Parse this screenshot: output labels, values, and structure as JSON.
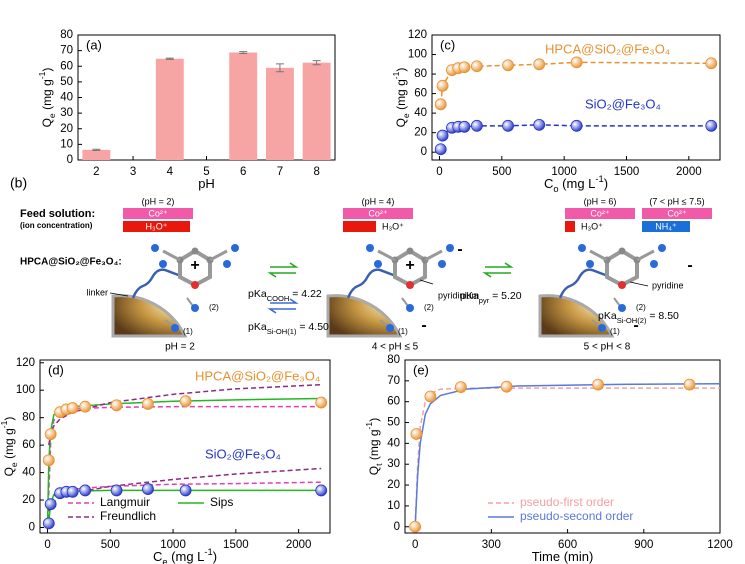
{
  "chart_data": [
    {
      "type": "bar",
      "panel_label": "(a)",
      "x_label": [
        {
          "text": "pH"
        }
      ],
      "y_label": [
        {
          "text": "Q"
        },
        {
          "text": "e",
          "shift": "sub"
        },
        {
          "text": " (mg g"
        },
        {
          "text": "-1",
          "shift": "super"
        },
        {
          "text": ")"
        }
      ],
      "categories": [
        "2",
        "3",
        "4",
        "5",
        "6",
        "7",
        "8"
      ],
      "values": [
        6.5,
        null,
        64.8,
        null,
        68.8,
        59,
        62.3
      ],
      "errors": [
        0.4,
        null,
        0.4,
        null,
        0.6,
        2.5,
        1.3
      ],
      "color": "#f7a4a4",
      "ylim": [
        0,
        80
      ],
      "yticks": [
        0,
        10,
        20,
        30,
        40,
        50,
        60,
        70,
        80
      ]
    },
    {
      "type": "scatter",
      "panel_label": "(c)",
      "x_label": [
        {
          "text": "C"
        },
        {
          "text": "o",
          "shift": "sub"
        },
        {
          "text": " (mg L"
        },
        {
          "text": "-1",
          "shift": "super"
        },
        {
          "text": ")"
        }
      ],
      "y_label": [
        {
          "text": "Q"
        },
        {
          "text": "e",
          "shift": "sub"
        },
        {
          "text": " (mg g"
        },
        {
          "text": "-1",
          "shift": "super"
        },
        {
          "text": ")"
        }
      ],
      "xlim": [
        -60,
        2250
      ],
      "xticks": [
        0,
        500,
        1000,
        1500,
        2000
      ],
      "ylim": [
        -8,
        120
      ],
      "yticks": [
        0,
        20,
        40,
        60,
        80,
        100,
        120
      ],
      "series": [
        {
          "name": "HPCA@SiO₂@Fe₃O₄",
          "color": "#e8912f",
          "marker": true,
          "line": "dashed",
          "x": [
            10,
            25,
            100,
            150,
            200,
            300,
            550,
            800,
            1100,
            2180
          ],
          "values": [
            49,
            68,
            84,
            86,
            87,
            88,
            89,
            90,
            92,
            91
          ]
        },
        {
          "name": "SiO₂@Fe₃O₄",
          "color": "#2235c8",
          "marker": true,
          "line": "dashed",
          "x": [
            10,
            25,
            100,
            150,
            200,
            300,
            550,
            800,
            1100,
            2180
          ],
          "values": [
            3,
            17,
            25,
            26,
            26,
            27,
            27,
            28,
            27,
            27
          ]
        }
      ]
    },
    {
      "type": "scatter",
      "panel_label": "(d)",
      "legend": "lower center",
      "legend_text": "black",
      "x_label": [
        {
          "text": "C"
        },
        {
          "text": "e",
          "shift": "sub"
        },
        {
          "text": " (mg L"
        },
        {
          "text": "-1",
          "shift": "super"
        },
        {
          "text": ")"
        }
      ],
      "y_label": [
        {
          "text": "Q"
        },
        {
          "text": "e",
          "shift": "sub"
        },
        {
          "text": " (mg g"
        },
        {
          "text": "-1",
          "shift": "super"
        },
        {
          "text": ")"
        }
      ],
      "xlim": [
        -60,
        2250
      ],
      "xticks": [
        0,
        500,
        1000,
        1500,
        2000
      ],
      "ylim": [
        -4,
        122
      ],
      "yticks": [
        0,
        20,
        40,
        60,
        80,
        100,
        120
      ],
      "series": [
        {
          "name": "Langmuir",
          "color": "#e040b8",
          "line": "dashed",
          "pieces": [
            {
              "x": [
                0,
                25,
                50,
                100,
                200,
                500,
                1000,
                1500,
                2180
              ],
              "values": [
                0,
                62,
                78,
                84,
                86.5,
                87.5,
                88,
                88,
                88
              ]
            },
            {
              "x": [
                0,
                25,
                50,
                100,
                200,
                500,
                1000,
                1500,
                2180
              ],
              "values": [
                0,
                17,
                23,
                26,
                28,
                30,
                31.5,
                32,
                33
              ]
            }
          ]
        },
        {
          "name": "Sips",
          "color": "#22b822",
          "line": "solid",
          "pieces": [
            {
              "x": [
                0,
                10,
                25,
                50,
                100,
                200,
                500,
                1000,
                1500,
                2180
              ],
              "values": [
                0,
                48,
                70,
                82,
                86,
                88,
                90,
                92,
                93,
                94
              ]
            },
            {
              "x": [
                0,
                10,
                25,
                50,
                100,
                200,
                500,
                1000,
                2180
              ],
              "values": [
                0,
                5,
                17,
                24,
                26,
                26.5,
                27,
                27,
                27
              ]
            }
          ]
        },
        {
          "name": "Freundlich",
          "color": "#8e2a88",
          "line": "dashed",
          "pieces": [
            {
              "x": [
                10,
                25,
                50,
                100,
                200,
                500,
                1000,
                1500,
                2180
              ],
              "values": [
                60,
                68,
                74,
                79,
                84,
                91,
                97,
                101,
                104
              ]
            },
            {
              "x": [
                10,
                25,
                50,
                100,
                200,
                500,
                1000,
                1500,
                2180
              ],
              "values": [
                12,
                16,
                19,
                22,
                25,
                30,
                35,
                39,
                43
              ]
            }
          ]
        },
        {
          "name": "HPCA@SiO₂@Fe₃O₄",
          "color": "#e8912f",
          "marker": true,
          "x": [
            10,
            25,
            100,
            150,
            200,
            300,
            550,
            800,
            1100,
            2180
          ],
          "values": [
            49,
            68,
            84,
            86,
            87,
            88,
            89,
            90,
            92,
            91
          ]
        },
        {
          "name": "SiO₂@Fe₃O₄",
          "color": "#2235c8",
          "marker": true,
          "x": [
            10,
            25,
            100,
            150,
            200,
            300,
            550,
            800,
            1100,
            2180
          ],
          "values": [
            3,
            17,
            25,
            26,
            26,
            27,
            27,
            28,
            27,
            27
          ]
        }
      ]
    },
    {
      "type": "scatter",
      "panel_label": "(e)",
      "legend": "lower right",
      "legend_text": "colored",
      "x_label": [
        {
          "text": "Time (min)"
        }
      ],
      "y_label": [
        {
          "text": "Q"
        },
        {
          "text": "t",
          "shift": "sub"
        },
        {
          "text": " (mg g"
        },
        {
          "text": "-1",
          "shift": "super"
        },
        {
          "text": ")"
        }
      ],
      "xlim": [
        -40,
        1200
      ],
      "xticks": [
        0,
        300,
        600,
        900,
        1200
      ],
      "ylim": [
        -3,
        80
      ],
      "yticks": [
        0,
        10,
        20,
        30,
        40,
        50,
        60,
        70,
        80
      ],
      "series": [
        {
          "name": "pseudo-first order",
          "color": "#f4a0a0",
          "line": "dashed",
          "pieces": [
            {
              "x": [
                0,
                10,
                20,
                40,
                60,
                100,
                200,
                400,
                800,
                1200
              ],
              "values": [
                0,
                30,
                48,
                60,
                64,
                66,
                66.5,
                66.5,
                66.5,
                66.5
              ]
            }
          ]
        },
        {
          "name": "pseudo-second order",
          "color": "#5a78e0",
          "line": "solid",
          "pieces": [
            {
              "x": [
                0,
                10,
                20,
                40,
                60,
                100,
                200,
                400,
                800,
                1200
              ],
              "values": [
                0,
                25,
                40,
                54,
                59,
                63,
                66,
                67.5,
                68.3,
                68.6
              ]
            }
          ]
        },
        {
          "color": "#e8912f",
          "marker": true,
          "x": [
            0,
            5,
            60,
            180,
            360,
            720,
            1080
          ],
          "values": [
            0,
            44.5,
            62.5,
            67,
            67.2,
            68.2,
            68.2
          ]
        }
      ]
    }
  ],
  "diagram": {
    "panel_label": "(b)",
    "feed_label": "Feed solution:",
    "feed_sub": "(ion concentration)",
    "conditions": [
      {
        "ph": "(pH = 2)",
        "ions": [
          "Co²⁺",
          "H₃O⁺"
        ]
      },
      {
        "ph": "(pH = 4)",
        "ions": [
          "Co²⁺",
          "H₃O⁺"
        ]
      },
      {
        "ph": "(pH = 6)",
        "ions": [
          "Co²⁺",
          "H₃O⁺"
        ]
      },
      {
        "ph": "(7 < pH ≤ 7.5)",
        "ions": [
          "Co²⁺",
          "NH₄⁺"
        ]
      }
    ],
    "material": "HPCA@SiO₂@Fe₃O₄:",
    "states": [
      {
        "ph": "pH = 2",
        "charges": [
          "+"
        ],
        "note": "linker"
      },
      {
        "ph": "4 < pH ≤ 5",
        "charges": [
          "+",
          "-",
          "-"
        ],
        "note": "pyridinium"
      },
      {
        "ph": "5 < pH < 8",
        "charges": [
          "-",
          "-"
        ],
        "note": "pyridine"
      }
    ],
    "site_labels": [
      "(2)",
      "(1)"
    ],
    "pka": [
      [
        {
          "text": "pKa"
        },
        {
          "text": "COOH",
          "shift": "sub"
        },
        {
          "text": " = 4.22"
        }
      ],
      [
        {
          "text": "pKa"
        },
        {
          "text": "Si-OH(1)",
          "shift": "sub"
        },
        {
          "text": " = 4.50"
        }
      ],
      [
        {
          "text": "pKa"
        },
        {
          "text": "pyr",
          "shift": "sub"
        },
        {
          "text": " = 5.20"
        }
      ],
      [
        {
          "text": "pKa"
        },
        {
          "text": "Si-OH(2)",
          "shift": "sub"
        },
        {
          "text": " = 8.50"
        }
      ]
    ]
  }
}
